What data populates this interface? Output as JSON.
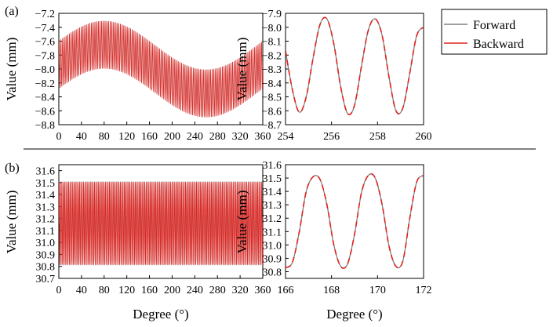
{
  "colors": {
    "forward": "#808080",
    "backward": "#e0201b",
    "axis": "#000000"
  },
  "legend": {
    "items": [
      {
        "label": "Forward",
        "color": "#808080"
      },
      {
        "label": "Backward",
        "color": "#e0201b"
      }
    ]
  },
  "chart_data": [
    {
      "id": "a-main",
      "panel_label": "(a)",
      "type": "line",
      "xlabel": "",
      "ylabel": "Value (mm)",
      "xlim": [
        0,
        360
      ],
      "ylim": [
        -8.8,
        -7.2
      ],
      "xticks": [
        0,
        40,
        80,
        120,
        160,
        200,
        240,
        280,
        320,
        360
      ],
      "yticks": [
        -8.8,
        -8.6,
        -8.4,
        -8.2,
        -8.0,
        -7.8,
        -7.6,
        -7.4,
        -7.2
      ],
      "ytick_labels": [
        "−8.8",
        "−8.6",
        "−8.4",
        "−8.2",
        "−8.0",
        "−7.8",
        "−7.6",
        "−7.4",
        "−7.2"
      ],
      "description_of_signal": {
        "period_deg": 3.0,
        "mid": -8.0,
        "envelope_offset_amp": 0.35,
        "envelope_phase_deg": 80,
        "oscillation_half_amp": 0.345
      },
      "series": [
        {
          "name": "Forward",
          "color": "#808080"
        },
        {
          "name": "Backward",
          "color": "#e0201b"
        }
      ]
    },
    {
      "id": "a-zoom",
      "type": "line",
      "xlabel": "",
      "ylabel": "Value (mm)",
      "xlim": [
        254,
        260
      ],
      "ylim": [
        -8.7,
        -7.9
      ],
      "xticks": [
        254,
        256,
        258,
        260
      ],
      "yticks": [
        -8.7,
        -8.6,
        -8.5,
        -8.4,
        -8.3,
        -8.2,
        -8.1,
        -8.0,
        -7.9
      ],
      "ytick_labels": [
        "−8.7",
        "−8.6",
        "−8.5",
        "−8.4",
        "−8.3",
        "−8.2",
        "−8.1",
        "−8.0",
        "−7.9"
      ],
      "series": [
        {
          "name": "Forward",
          "color": "#808080",
          "x": [
            254.0,
            254.3,
            254.6,
            254.9,
            255.2,
            255.5,
            255.8,
            256.1,
            256.4,
            256.7,
            257.0,
            257.3,
            257.6,
            257.9,
            258.2,
            258.5,
            258.8,
            259.1,
            259.4,
            259.7,
            260.0
          ],
          "y": [
            -8.17,
            -8.45,
            -8.61,
            -8.5,
            -8.22,
            -7.98,
            -7.94,
            -8.12,
            -8.43,
            -8.62,
            -8.56,
            -8.28,
            -8.02,
            -7.94,
            -8.06,
            -8.36,
            -8.6,
            -8.58,
            -8.33,
            -8.06,
            -8.0
          ]
        },
        {
          "name": "Backward",
          "color": "#e0201b",
          "x": [
            254.0,
            254.3,
            254.6,
            254.9,
            255.2,
            255.5,
            255.8,
            256.1,
            256.4,
            256.7,
            257.0,
            257.3,
            257.6,
            257.9,
            258.2,
            258.5,
            258.8,
            259.1,
            259.4,
            259.7,
            260.0
          ],
          "y": [
            -8.17,
            -8.45,
            -8.61,
            -8.5,
            -8.22,
            -7.98,
            -7.94,
            -8.12,
            -8.43,
            -8.62,
            -8.56,
            -8.28,
            -8.02,
            -7.94,
            -8.06,
            -8.36,
            -8.6,
            -8.58,
            -8.33,
            -8.06,
            -8.0
          ]
        }
      ]
    },
    {
      "id": "b-main",
      "panel_label": "(b)",
      "type": "line",
      "xlabel": "Degree (°)",
      "ylabel": "Value (mm)",
      "xlim": [
        0,
        360
      ],
      "ylim": [
        30.7,
        31.65
      ],
      "xticks": [
        0,
        40,
        80,
        120,
        160,
        200,
        240,
        280,
        320,
        360
      ],
      "yticks": [
        30.7,
        30.8,
        30.9,
        31.0,
        31.1,
        31.2,
        31.3,
        31.4,
        31.5,
        31.6
      ],
      "ytick_labels": [
        "30.7",
        "30.8",
        "30.9",
        "31.0",
        "31.1",
        "31.2",
        "31.3",
        "31.4",
        "31.5",
        "31.6"
      ],
      "description_of_signal": {
        "period_deg": 2.4,
        "low": 30.81,
        "high": 31.51
      },
      "series": [
        {
          "name": "Forward",
          "color": "#808080"
        },
        {
          "name": "Backward",
          "color": "#e0201b"
        }
      ]
    },
    {
      "id": "b-zoom",
      "type": "line",
      "xlabel": "Degree (°)",
      "ylabel": "Value (mm)",
      "xlim": [
        166,
        172
      ],
      "ylim": [
        30.75,
        31.6
      ],
      "xticks": [
        166,
        168,
        170,
        172
      ],
      "yticks": [
        30.8,
        30.9,
        31.0,
        31.1,
        31.2,
        31.3,
        31.4,
        31.5,
        31.6
      ],
      "ytick_labels": [
        "30.8",
        "30.9",
        "31.0",
        "31.1",
        "31.2",
        "31.3",
        "31.4",
        "31.5",
        "31.6"
      ],
      "series": [
        {
          "name": "Forward",
          "color": "#808080",
          "x": [
            166.0,
            166.3,
            166.6,
            166.9,
            167.2,
            167.5,
            167.8,
            168.1,
            168.4,
            168.7,
            169.0,
            169.3,
            169.6,
            169.9,
            170.2,
            170.5,
            170.8,
            171.1,
            171.4,
            171.7,
            172.0
          ],
          "y": [
            30.83,
            30.87,
            31.1,
            31.4,
            31.51,
            31.49,
            31.3,
            31.0,
            30.84,
            30.86,
            31.08,
            31.39,
            31.52,
            31.5,
            31.3,
            30.99,
            30.84,
            30.88,
            31.2,
            31.47,
            31.52
          ]
        },
        {
          "name": "Backward",
          "color": "#e0201b",
          "x": [
            166.0,
            166.3,
            166.6,
            166.9,
            167.2,
            167.5,
            167.8,
            168.1,
            168.4,
            168.7,
            169.0,
            169.3,
            169.6,
            169.9,
            170.2,
            170.5,
            170.8,
            171.1,
            171.4,
            171.7,
            172.0
          ],
          "y": [
            30.83,
            30.87,
            31.1,
            31.4,
            31.51,
            31.49,
            31.3,
            31.0,
            30.84,
            30.86,
            31.08,
            31.39,
            31.52,
            31.5,
            31.3,
            30.99,
            30.84,
            30.88,
            31.2,
            31.47,
            31.52
          ]
        }
      ]
    }
  ]
}
